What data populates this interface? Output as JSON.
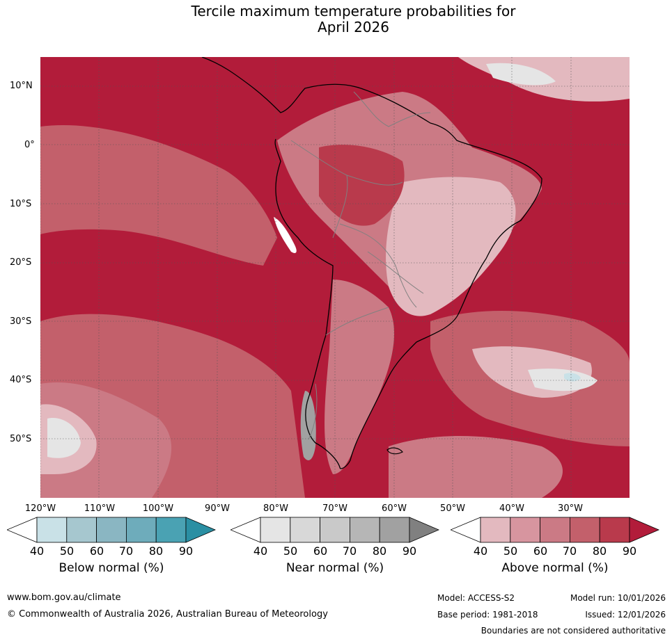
{
  "title_line1": "Tercile maximum temperature probabilities for",
  "title_line2": "April 2026",
  "lat_labels": [
    "10°N",
    "0°",
    "10°S",
    "20°S",
    "30°S",
    "40°S",
    "50°S"
  ],
  "lon_labels": [
    "120°W",
    "110°W",
    "100°W",
    "90°W",
    "80°W",
    "70°W",
    "60°W",
    "50°W",
    "40°W",
    "30°W"
  ],
  "colorbars": [
    {
      "caption": "Below normal (%)",
      "ticks": [
        "40",
        "50",
        "60",
        "70",
        "80",
        "90"
      ],
      "colors": [
        "#ffffff",
        "#c9e1e7",
        "#a6c7cf",
        "#8ab6c2",
        "#6eacbb",
        "#4aa2b3",
        "#2a8fa3"
      ]
    },
    {
      "caption": "Near normal (%)",
      "ticks": [
        "40",
        "50",
        "60",
        "70",
        "80",
        "90"
      ],
      "colors": [
        "#ffffff",
        "#e5e5e5",
        "#d8d8d8",
        "#c9c9c9",
        "#b6b6b6",
        "#a1a1a1",
        "#808080"
      ]
    },
    {
      "caption": "Above normal (%)",
      "ticks": [
        "40",
        "50",
        "60",
        "70",
        "80",
        "90"
      ],
      "colors": [
        "#ffffff",
        "#e3b9bf",
        "#d7959f",
        "#cb7a85",
        "#c3606b",
        "#b93a4c",
        "#b21c3a"
      ]
    }
  ],
  "footer": {
    "url": "www.bom.gov.au/climate",
    "copyright": "© Commonwealth of Australia 2026, Australian Bureau of Meteorology",
    "model": "Model: ACCESS-S2",
    "model_run": "Model run: 10/01/2026",
    "base_period": "Base period: 1981-2018",
    "issued": "Issued: 12/01/2026",
    "disclaimer": "Boundaries are not considered authoritative"
  },
  "colors": {
    "above_90": "#b21c3a",
    "above_80": "#b93a4c",
    "above_70": "#c3606b",
    "above_60": "#cb7a85",
    "above_50": "#d7959f",
    "above_40": "#e3b9bf",
    "near_50": "#e5e5e5",
    "below_40": "#c9e1e7"
  }
}
